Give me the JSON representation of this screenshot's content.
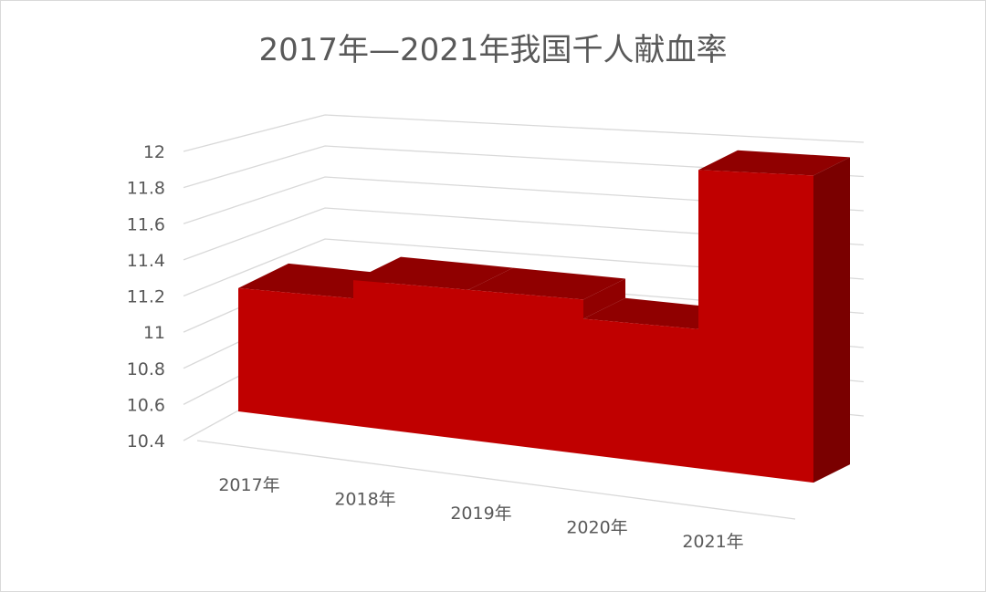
{
  "chart_data": {
    "type": "bar",
    "style": "3d-area",
    "title": "2017年—2021年我国千人献血率",
    "categories": [
      "2017年",
      "2018年",
      "2019年",
      "2020年",
      "2021年"
    ],
    "values": [
      11.1,
      11.2,
      11.2,
      11.1,
      11.9
    ],
    "ylim": [
      10.4,
      12
    ],
    "yticks": [
      "10.4",
      "10.6",
      "10.8",
      "11",
      "11.2",
      "11.4",
      "11.6",
      "11.8",
      "12"
    ],
    "grid": true,
    "colors": {
      "front": "#c00000",
      "top": "#900000",
      "side": "#7a0000"
    }
  }
}
